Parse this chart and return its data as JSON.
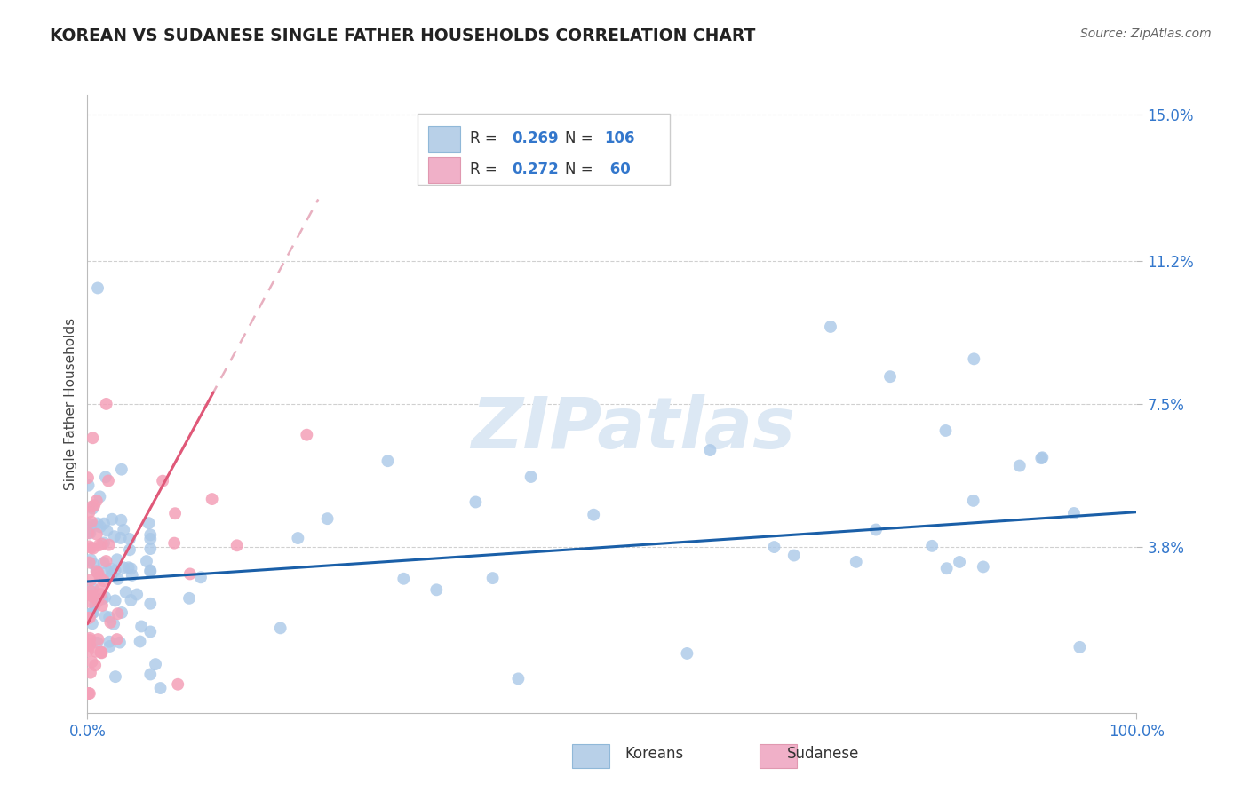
{
  "title": "KOREAN VS SUDANESE SINGLE FATHER HOUSEHOLDS CORRELATION CHART",
  "source": "Source: ZipAtlas.com",
  "ylabel": "Single Father Households",
  "xlim": [
    0,
    1.0
  ],
  "ylim": [
    -0.005,
    0.155
  ],
  "ytick_vals": [
    0.038,
    0.075,
    0.112,
    0.15
  ],
  "ytick_labels": [
    "3.8%",
    "7.5%",
    "11.2%",
    "15.0%"
  ],
  "xtick_vals": [
    0.0,
    1.0
  ],
  "xtick_labels": [
    "0.0%",
    "100.0%"
  ],
  "korean_R": 0.269,
  "korean_N": 106,
  "sudanese_R": 0.272,
  "sudanese_N": 60,
  "korean_color": "#aac8e8",
  "sudanese_color": "#f4a0b8",
  "korean_line_color": "#1a5fa8",
  "sudanese_line_color": "#e05878",
  "sudanese_line_dash_color": "#e8b0c0",
  "grid_color": "#d0d0d0",
  "background_color": "#ffffff",
  "watermark_text": "ZIPatlas",
  "watermark_color": "#dce8f4",
  "legend_korean_box": "#b8d0e8",
  "legend_sudanese_box": "#f0b0c8",
  "tick_color": "#3377cc",
  "title_color": "#222222",
  "source_color": "#666666",
  "ylabel_color": "#444444"
}
